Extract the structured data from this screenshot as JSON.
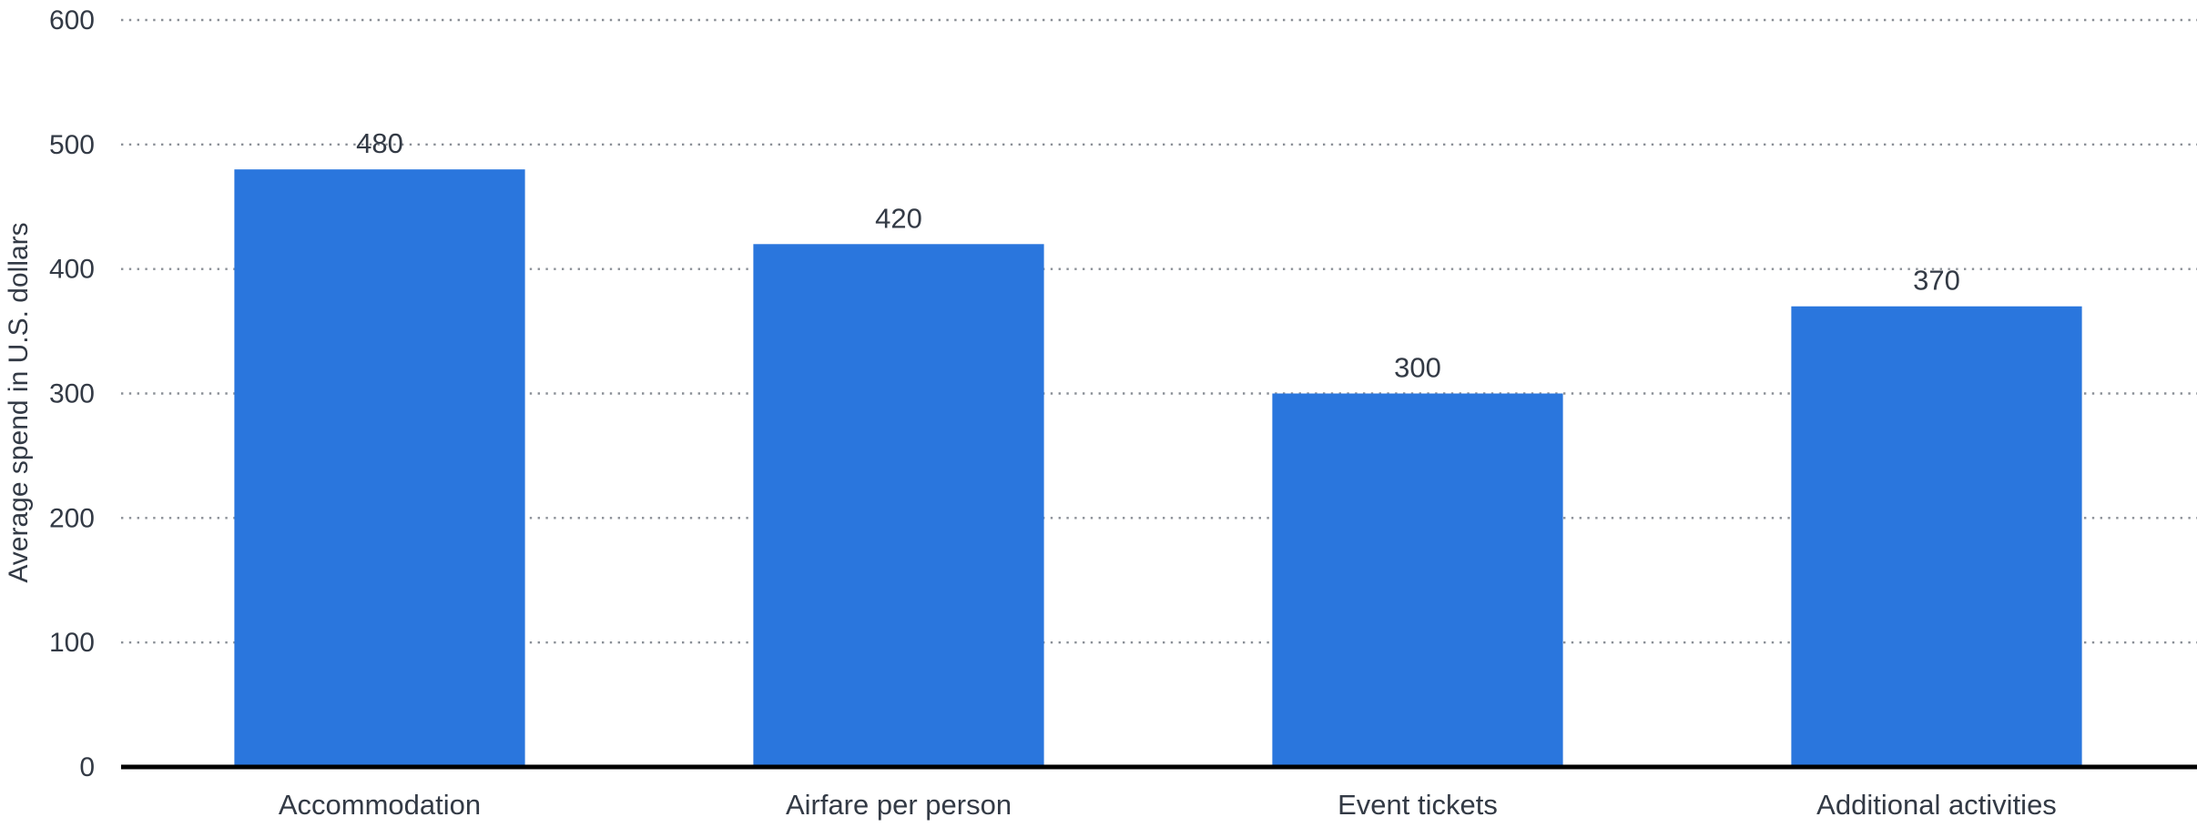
{
  "chart_data": {
    "type": "bar",
    "categories": [
      "Accommodation",
      "Airfare per person",
      "Event tickets",
      "Additional activities"
    ],
    "values": [
      480,
      420,
      300,
      370
    ],
    "title": "",
    "xlabel": "",
    "ylabel": "Average spend in U.S. dollars",
    "ylim": [
      0,
      600
    ],
    "yticks": [
      0,
      100,
      200,
      300,
      400,
      500,
      600
    ],
    "grid": "horizontal dotted",
    "legend": "none",
    "data_labels": true,
    "colors": {
      "bar": "#2a76dd",
      "grid": "#8a8f96",
      "axis": "#000000",
      "text": "#333a45"
    }
  }
}
